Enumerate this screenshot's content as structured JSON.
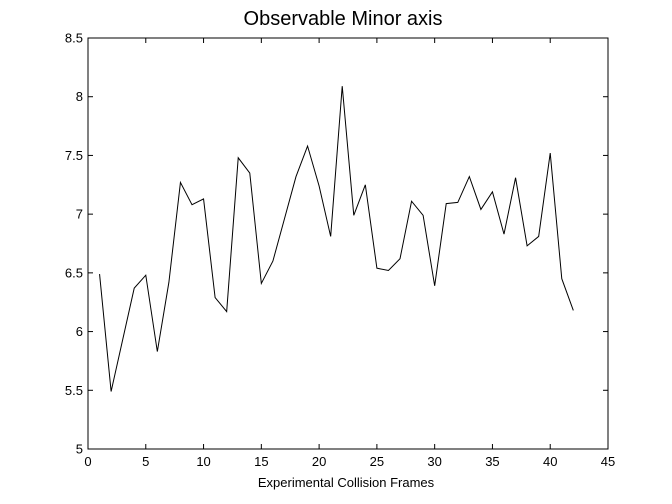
{
  "chart_data": {
    "type": "line",
    "title": "Observable Minor axis",
    "xlabel": "Experimental Collision Frames",
    "ylabel": "",
    "xlim": [
      0,
      45
    ],
    "ylim": [
      5,
      8.5
    ],
    "xticks": [
      0,
      5,
      10,
      15,
      20,
      25,
      30,
      35,
      40,
      45
    ],
    "yticks": [
      5,
      5.5,
      6,
      6.5,
      7,
      7.5,
      8,
      8.5
    ],
    "xtick_labels": [
      "0",
      "5",
      "10",
      "15",
      "20",
      "25",
      "30",
      "35",
      "40",
      "45"
    ],
    "ytick_labels": [
      "5",
      "5.5",
      "6",
      "6.5",
      "7",
      "7.5",
      "8",
      "8.5"
    ],
    "grid": false,
    "line_color": "#000000",
    "series": [
      {
        "x": [
          1,
          2,
          3,
          4,
          5,
          6,
          7,
          8,
          9,
          10,
          11,
          12,
          13,
          14,
          15,
          16,
          17,
          18,
          19,
          20,
          21,
          22,
          23,
          24,
          25,
          26,
          27,
          28,
          29,
          30,
          31,
          32,
          33,
          34,
          35,
          36,
          37,
          38,
          39,
          40,
          41,
          42
        ],
        "values": [
          6.49,
          5.49,
          5.93,
          6.37,
          6.48,
          5.83,
          6.42,
          7.27,
          7.08,
          7.13,
          6.29,
          6.17,
          7.48,
          7.35,
          6.41,
          6.6,
          6.96,
          7.32,
          7.58,
          7.24,
          6.81,
          8.09,
          6.99,
          7.25,
          6.54,
          6.52,
          6.62,
          7.11,
          6.99,
          6.39,
          7.09,
          7.1,
          7.32,
          7.04,
          7.19,
          6.83,
          7.31,
          6.73,
          6.81,
          7.52,
          6.45,
          6.18
        ]
      }
    ]
  }
}
